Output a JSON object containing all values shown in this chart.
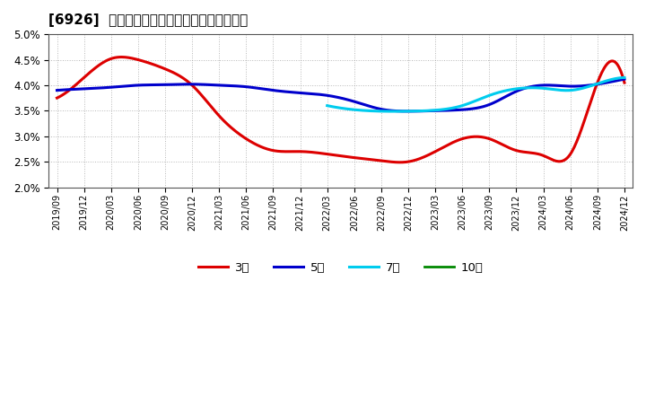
{
  "title": "[6926]  当期純利益マージンの標準偏差の推移",
  "ylim": [
    0.02,
    0.05
  ],
  "yticks": [
    0.02,
    0.025,
    0.03,
    0.035,
    0.04,
    0.045,
    0.05
  ],
  "background_color": "#ffffff",
  "plot_bg_color": "#ffffff",
  "grid_color": "#999999",
  "x_labels": [
    "2019/09",
    "2019/12",
    "2020/03",
    "2020/06",
    "2020/09",
    "2020/12",
    "2021/03",
    "2021/06",
    "2021/09",
    "2021/12",
    "2022/03",
    "2022/06",
    "2022/09",
    "2022/12",
    "2023/03",
    "2023/06",
    "2023/09",
    "2023/12",
    "2024/03",
    "2024/06",
    "2024/09",
    "2024/12"
  ],
  "series": {
    "3year": {
      "color": "#dd0000",
      "label": "3年",
      "data": [
        [
          0,
          0.0375
        ],
        [
          1,
          0.0415
        ],
        [
          2,
          0.0452
        ],
        [
          3,
          0.045
        ],
        [
          4,
          0.0432
        ],
        [
          5,
          0.04
        ],
        [
          6,
          0.034
        ],
        [
          7,
          0.0295
        ],
        [
          8,
          0.0272
        ],
        [
          9,
          0.027
        ],
        [
          10,
          0.0265
        ],
        [
          11,
          0.0258
        ],
        [
          12,
          0.0252
        ],
        [
          13,
          0.025
        ],
        [
          14,
          0.027
        ],
        [
          15,
          0.0295
        ],
        [
          16,
          0.0295
        ],
        [
          17,
          0.0272
        ],
        [
          18,
          0.0262
        ],
        [
          19,
          0.0265
        ],
        [
          20,
          0.0405
        ],
        [
          21,
          0.0405
        ]
      ]
    },
    "5year": {
      "color": "#0000cc",
      "label": "5年",
      "data": [
        [
          0,
          0.039
        ],
        [
          1,
          0.0393
        ],
        [
          2,
          0.0396
        ],
        [
          3,
          0.04
        ],
        [
          4,
          0.0401
        ],
        [
          5,
          0.0402
        ],
        [
          6,
          0.04
        ],
        [
          7,
          0.0397
        ],
        [
          8,
          0.039
        ],
        [
          9,
          0.0385
        ],
        [
          10,
          0.038
        ],
        [
          11,
          0.0368
        ],
        [
          12,
          0.0353
        ],
        [
          13,
          0.0349
        ],
        [
          14,
          0.035
        ],
        [
          15,
          0.0352
        ],
        [
          16,
          0.0362
        ],
        [
          17,
          0.0388
        ],
        [
          18,
          0.04
        ],
        [
          19,
          0.0398
        ],
        [
          20,
          0.0402
        ],
        [
          21,
          0.0412
        ]
      ]
    },
    "7year": {
      "color": "#00ccee",
      "label": "7年",
      "data": [
        [
          10,
          0.036
        ],
        [
          11,
          0.0352
        ],
        [
          12,
          0.0349
        ],
        [
          13,
          0.0349
        ],
        [
          14,
          0.0351
        ],
        [
          15,
          0.036
        ],
        [
          16,
          0.038
        ],
        [
          17,
          0.0393
        ],
        [
          18,
          0.0394
        ],
        [
          19,
          0.039
        ],
        [
          20,
          0.0403
        ],
        [
          21,
          0.0415
        ]
      ]
    },
    "10year": {
      "color": "#008800",
      "label": "10年",
      "data": []
    }
  }
}
